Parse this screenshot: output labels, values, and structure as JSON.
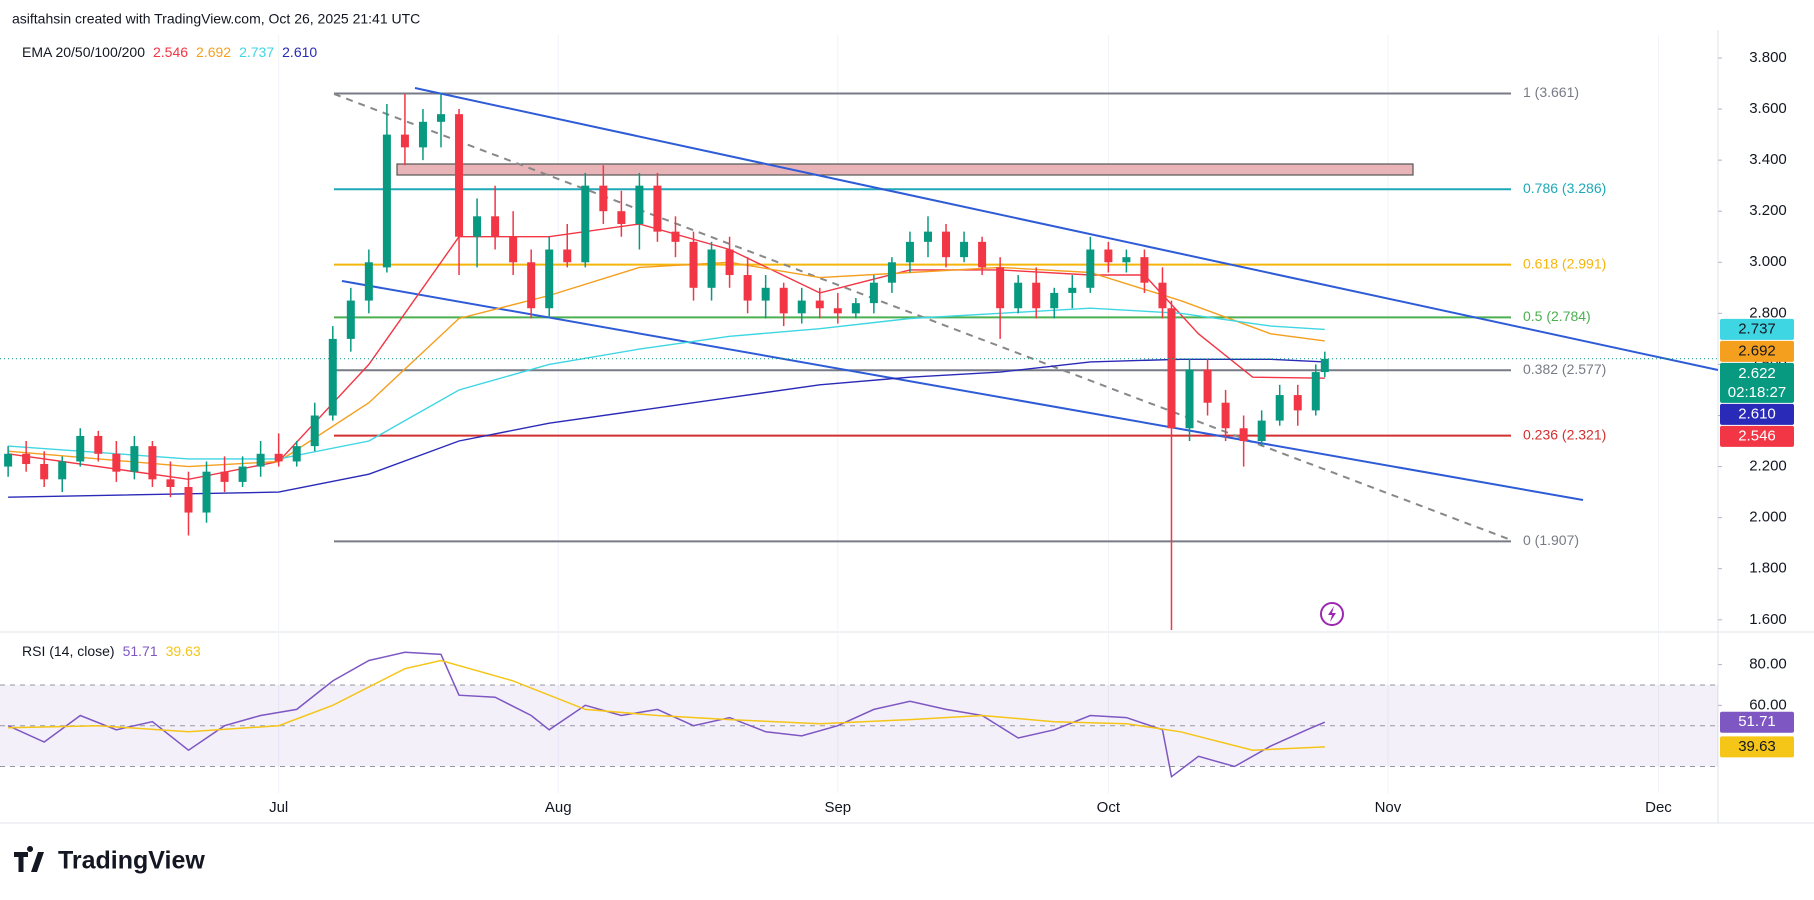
{
  "header": "asiftahsin created with TradingView.com, Oct 26, 2025 21:41 UTC",
  "logo": "TradingView",
  "chart_data": [
    {
      "type": "candlestick",
      "legend_title": "EMA 20/50/100/200",
      "up_color": "#089981",
      "down_color": "#f23645",
      "x": [
        0,
        2,
        4,
        6,
        8,
        10,
        12,
        14,
        16,
        18,
        20,
        22,
        24,
        26,
        28,
        30,
        32,
        34,
        36,
        38,
        40,
        42,
        44,
        46,
        48,
        50,
        52,
        54,
        56,
        58,
        60,
        62,
        64,
        66,
        68,
        70,
        72,
        74,
        76,
        78,
        80,
        82,
        84,
        86,
        88,
        90,
        92,
        94,
        96,
        98,
        100,
        102,
        104,
        106,
        108,
        110,
        112,
        114,
        116,
        118,
        120,
        122,
        124,
        126,
        128,
        129,
        131,
        133,
        135,
        137,
        139,
        141,
        143,
        145,
        146
      ],
      "open": [
        2.2,
        2.25,
        2.21,
        2.15,
        2.22,
        2.32,
        2.25,
        2.18,
        2.28,
        2.15,
        2.12,
        2.02,
        2.18,
        2.14,
        2.2,
        2.25,
        2.22,
        2.28,
        2.4,
        2.7,
        2.85,
        2.98,
        3.5,
        3.45,
        3.55,
        3.58,
        3.1,
        3.18,
        3.1,
        3.0,
        2.82,
        3.05,
        3.0,
        3.3,
        3.2,
        3.15,
        3.3,
        3.12,
        3.08,
        2.9,
        3.05,
        2.95,
        2.85,
        2.9,
        2.8,
        2.85,
        2.82,
        2.8,
        2.84,
        2.92,
        3.0,
        3.08,
        3.12,
        3.02,
        3.08,
        2.98,
        2.82,
        2.92,
        2.82,
        2.88,
        2.9,
        3.05,
        3.0,
        3.02,
        2.92,
        2.82,
        2.35,
        2.58,
        2.45,
        2.35,
        2.3,
        2.38,
        2.48,
        2.42,
        2.57
      ],
      "high": [
        2.28,
        2.3,
        2.26,
        2.24,
        2.35,
        2.34,
        2.3,
        2.32,
        2.3,
        2.22,
        2.18,
        2.22,
        2.24,
        2.24,
        2.3,
        2.33,
        2.3,
        2.45,
        2.75,
        2.9,
        3.05,
        3.62,
        3.66,
        3.6,
        3.66,
        3.6,
        3.25,
        3.3,
        3.2,
        3.05,
        3.1,
        3.15,
        3.35,
        3.38,
        3.28,
        3.35,
        3.35,
        3.18,
        3.12,
        3.08,
        3.1,
        3.02,
        2.95,
        2.92,
        2.9,
        2.9,
        2.88,
        2.86,
        2.95,
        3.02,
        3.12,
        3.18,
        3.15,
        3.12,
        3.1,
        3.02,
        2.95,
        2.98,
        2.9,
        2.95,
        3.1,
        3.08,
        3.05,
        3.05,
        2.98,
        2.85,
        2.62,
        2.62,
        2.5,
        2.4,
        2.42,
        2.52,
        2.52,
        2.6,
        2.65
      ],
      "low": [
        2.16,
        2.18,
        2.12,
        2.1,
        2.2,
        2.22,
        2.14,
        2.15,
        2.12,
        2.08,
        1.93,
        1.98,
        2.1,
        2.12,
        2.16,
        2.2,
        2.2,
        2.26,
        2.38,
        2.65,
        2.8,
        2.96,
        3.38,
        3.4,
        3.45,
        2.95,
        2.98,
        3.05,
        2.95,
        2.78,
        2.78,
        2.98,
        2.98,
        3.15,
        3.1,
        3.05,
        3.08,
        3.02,
        2.85,
        2.85,
        2.9,
        2.8,
        2.78,
        2.75,
        2.76,
        2.78,
        2.76,
        2.78,
        2.8,
        2.88,
        2.96,
        3.02,
        2.98,
        3.0,
        2.95,
        2.7,
        2.8,
        2.78,
        2.78,
        2.82,
        2.88,
        2.96,
        2.96,
        2.88,
        2.78,
        1.56,
        2.3,
        2.4,
        2.3,
        2.2,
        2.28,
        2.36,
        2.36,
        2.4,
        2.55
      ],
      "close": [
        2.25,
        2.21,
        2.15,
        2.22,
        2.32,
        2.25,
        2.18,
        2.28,
        2.15,
        2.12,
        2.02,
        2.18,
        2.14,
        2.2,
        2.25,
        2.22,
        2.28,
        2.4,
        2.7,
        2.85,
        3.0,
        3.5,
        3.45,
        3.55,
        3.58,
        3.1,
        3.18,
        3.1,
        3.0,
        2.82,
        3.05,
        3.0,
        3.3,
        3.2,
        3.15,
        3.3,
        3.12,
        3.08,
        2.9,
        3.05,
        2.95,
        2.85,
        2.9,
        2.8,
        2.85,
        2.82,
        2.8,
        2.84,
        2.92,
        3.0,
        3.08,
        3.12,
        3.02,
        3.08,
        2.98,
        2.82,
        2.92,
        2.82,
        2.88,
        2.9,
        3.05,
        3.0,
        3.02,
        2.92,
        2.82,
        2.35,
        2.58,
        2.45,
        2.35,
        2.3,
        2.38,
        2.48,
        2.42,
        2.57,
        2.622
      ],
      "countdown": "02:18:27",
      "series": [
        {
          "color": "#f23645",
          "x": [
            0,
            20,
            30,
            40,
            50,
            60,
            70,
            80,
            90,
            100,
            110,
            120,
            126,
            132,
            138,
            146
          ],
          "values": [
            2.25,
            2.15,
            2.22,
            2.6,
            3.1,
            3.1,
            3.15,
            3.05,
            2.88,
            2.97,
            2.97,
            2.95,
            2.95,
            2.72,
            2.55,
            2.546
          ]
        },
        {
          "color": "#f59f1f",
          "x": [
            0,
            20,
            30,
            40,
            50,
            60,
            70,
            80,
            90,
            100,
            110,
            120,
            130,
            140,
            146
          ],
          "values": [
            2.26,
            2.2,
            2.22,
            2.45,
            2.78,
            2.87,
            2.98,
            3.0,
            2.94,
            2.96,
            2.98,
            2.96,
            2.85,
            2.72,
            2.692
          ]
        },
        {
          "color": "#3fd6e3",
          "x": [
            0,
            20,
            30,
            40,
            50,
            60,
            70,
            80,
            90,
            100,
            110,
            120,
            130,
            140,
            146
          ],
          "values": [
            2.28,
            2.23,
            2.23,
            2.3,
            2.5,
            2.6,
            2.66,
            2.71,
            2.74,
            2.78,
            2.8,
            2.82,
            2.8,
            2.75,
            2.737
          ]
        },
        {
          "color": "#2a2ab8",
          "x": [
            0,
            30,
            40,
            50,
            60,
            70,
            80,
            90,
            100,
            110,
            120,
            130,
            140,
            146
          ],
          "values": [
            2.08,
            2.1,
            2.17,
            2.3,
            2.37,
            2.42,
            2.47,
            2.52,
            2.55,
            2.57,
            2.61,
            2.62,
            2.62,
            2.61
          ],
          "last_label": "2.610"
        }
      ],
      "fib_levels": [
        {
          "label": "1 (3.661)",
          "value": 3.661,
          "color": "#787b86"
        },
        {
          "label": "0.786 (3.286)",
          "value": 3.286,
          "color": "#1fa8b8"
        },
        {
          "label": "0.618 (2.991)",
          "value": 2.991,
          "color": "#f5b50a"
        },
        {
          "label": "0.5 (2.784)",
          "value": 2.784,
          "color": "#4caf50"
        },
        {
          "label": "0.382 (2.577)",
          "value": 2.577,
          "color": "#787b86"
        },
        {
          "label": "0.236 (2.321)",
          "value": 2.321,
          "color": "#d32f2f"
        },
        {
          "label": "0 (1.907)",
          "value": 1.907,
          "color": "#787b86"
        }
      ],
      "xlim": [
        -0.9,
        189.6
      ],
      "xticks": [
        {
          "value": 30,
          "label": "Jul"
        },
        {
          "value": 61,
          "label": "Aug"
        },
        {
          "value": 92,
          "label": "Sep"
        },
        {
          "value": 122,
          "label": "Oct"
        },
        {
          "value": 153,
          "label": "Nov"
        },
        {
          "value": 183,
          "label": "Dec"
        }
      ],
      "ylim": [
        1.56,
        3.89
      ],
      "yticks": [
        {
          "value": 1.6,
          "label": "1.600"
        },
        {
          "value": 1.8,
          "label": "1.800"
        },
        {
          "value": 2.0,
          "label": "2.000"
        },
        {
          "value": 2.2,
          "label": "2.200"
        },
        {
          "value": 2.4,
          "label": "2.400"
        },
        {
          "value": 2.6,
          "label": "2.600"
        },
        {
          "value": 2.8,
          "label": "2.800"
        },
        {
          "value": 3.0,
          "label": "3.000"
        },
        {
          "value": 3.2,
          "label": "3.200"
        },
        {
          "value": 3.4,
          "label": "3.400"
        },
        {
          "value": 3.6,
          "label": "3.600"
        },
        {
          "value": 3.8,
          "label": "3.800"
        }
      ]
    },
    {
      "type": "line",
      "title": "RSI (14, close)",
      "series": [
        {
          "color": "#7e57c2",
          "x": [
            0,
            4,
            8,
            12,
            16,
            20,
            24,
            28,
            32,
            36,
            40,
            44,
            48,
            50,
            54,
            58,
            60,
            64,
            68,
            72,
            76,
            80,
            84,
            88,
            92,
            96,
            100,
            104,
            108,
            112,
            116,
            120,
            124,
            128,
            129,
            132,
            136,
            140,
            144,
            146
          ],
          "values": [
            50,
            42,
            55,
            48,
            52,
            38,
            50,
            55,
            58,
            72,
            82,
            86,
            85,
            65,
            64,
            55,
            48,
            60,
            55,
            58,
            50,
            54,
            47,
            45,
            50,
            58,
            62,
            58,
            55,
            44,
            48,
            55,
            54,
            48,
            25,
            35,
            30,
            40,
            48,
            51.71
          ]
        },
        {
          "color": "#f5c518",
          "x": [
            0,
            10,
            20,
            30,
            36,
            44,
            48,
            56,
            64,
            72,
            80,
            90,
            100,
            108,
            116,
            124,
            130,
            138,
            146
          ],
          "values": [
            49,
            50,
            47,
            50,
            60,
            78,
            82,
            72,
            58,
            55,
            53,
            51,
            53,
            55,
            52,
            51,
            47,
            38,
            39.63
          ]
        }
      ],
      "bands": [
        30,
        70
      ],
      "midline": 50,
      "band_color": "#7e57c2",
      "ylim": [
        17,
        95
      ],
      "yticks": [
        {
          "value": 80,
          "label": "80.00"
        },
        {
          "value": 60,
          "label": "60.00"
        }
      ]
    }
  ]
}
